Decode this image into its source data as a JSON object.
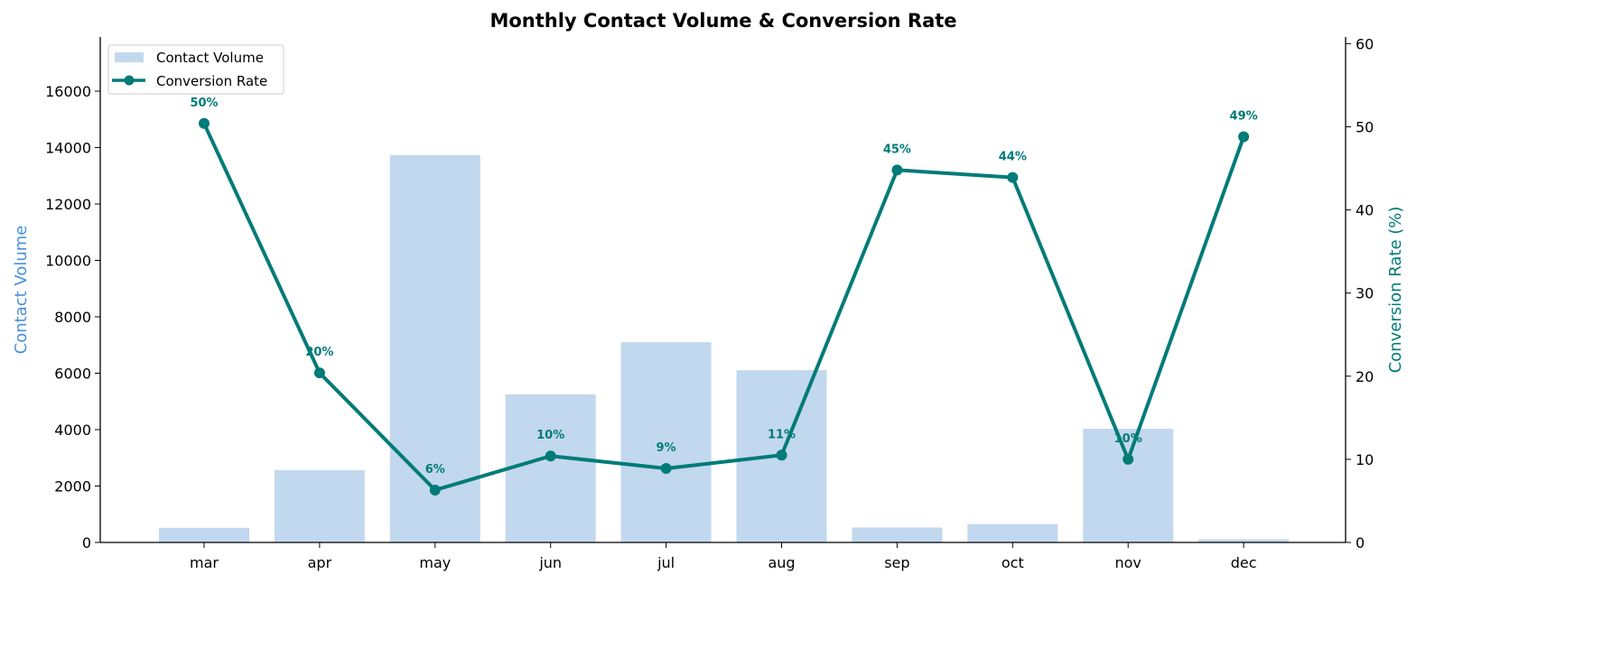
{
  "chart_data": {
    "type": "bar+line",
    "title": "Monthly Contact Volume & Conversion Rate",
    "categories": [
      "mar",
      "apr",
      "may",
      "jun",
      "jul",
      "aug",
      "sep",
      "oct",
      "nov",
      "dec"
    ],
    "series": [
      {
        "name": "Contact Volume",
        "type": "bar",
        "axis": "left",
        "color": "#c2d8ee",
        "values": [
          520,
          2560,
          13730,
          5250,
          7100,
          6110,
          530,
          650,
          4030,
          110
        ]
      },
      {
        "name": "Conversion Rate",
        "type": "line",
        "axis": "right",
        "color": "#007b78",
        "values": [
          50.4,
          20.4,
          6.3,
          10.4,
          8.9,
          10.5,
          44.8,
          43.9,
          10.0,
          48.8
        ],
        "labels": [
          "50%",
          "20%",
          "6%",
          "10%",
          "9%",
          "11%",
          "45%",
          "44%",
          "10%",
          "49%"
        ]
      }
    ],
    "ylabel_left": "Contact Volume",
    "ylabel_right": "Conversion Rate (%)",
    "ylabel_left_color": "#4a90d9",
    "ylabel_right_color": "#007b78",
    "ylim_left": [
      0,
      17920
    ],
    "ylim_right": [
      0,
      60.8
    ],
    "yticks_left": [
      0,
      2000,
      4000,
      6000,
      8000,
      10000,
      12000,
      14000,
      16000
    ],
    "yticks_right": [
      0,
      10,
      20,
      30,
      40,
      50,
      60
    ],
    "grid": false,
    "legend": "top-left"
  }
}
